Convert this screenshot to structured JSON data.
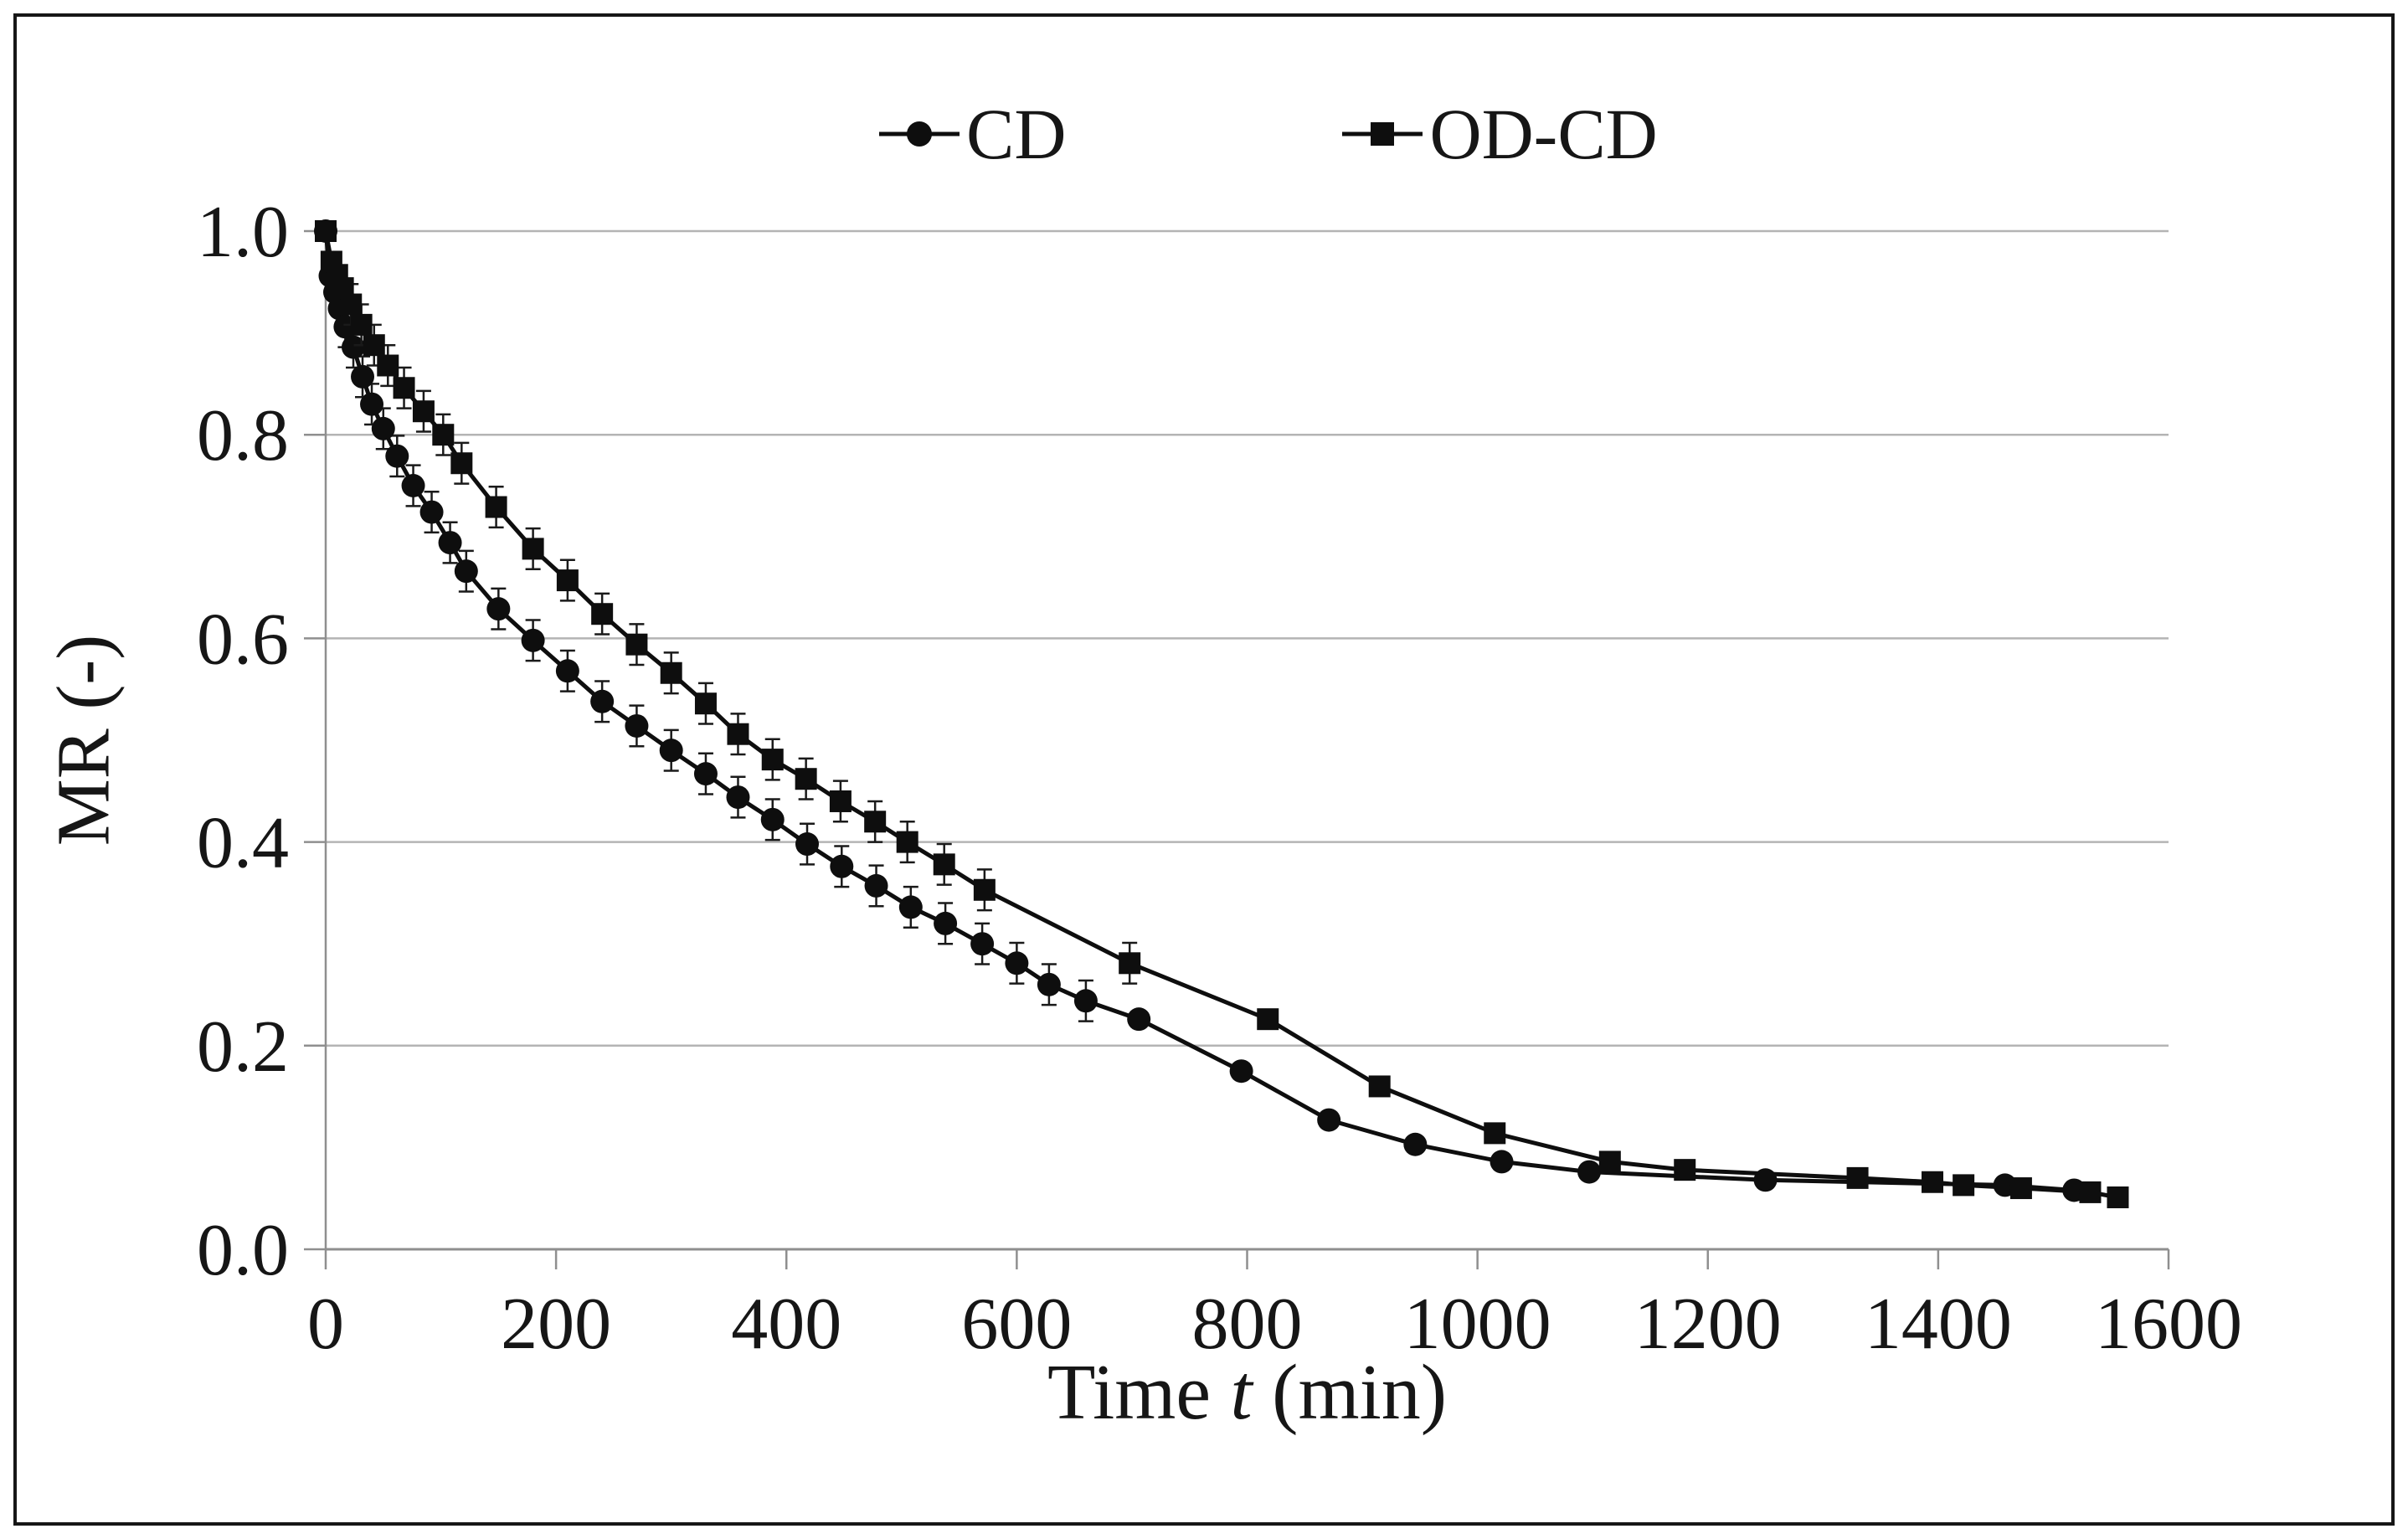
{
  "page": {
    "background": "#ffffff",
    "border_color": "#161616"
  },
  "legend": {
    "position": "top-center",
    "items": [
      {
        "label": "CD",
        "marker": "circle"
      },
      {
        "label": "OD-CD",
        "marker": "square"
      }
    ]
  },
  "chart_data": {
    "type": "line",
    "title": "",
    "xlabel": "Time t (min)",
    "xlabel_parts": {
      "prefix": "Time ",
      "variable": "t",
      "suffix": " (min)"
    },
    "ylabel": "MR (-)",
    "xlim": [
      0,
      1600
    ],
    "ylim": [
      0.0,
      1.0
    ],
    "xticks": [
      {
        "v": 0,
        "label": "0"
      },
      {
        "v": 200,
        "label": "200"
      },
      {
        "v": 400,
        "label": "400"
      },
      {
        "v": 600,
        "label": "600"
      },
      {
        "v": 800,
        "label": "800"
      },
      {
        "v": 1000,
        "label": "1000"
      },
      {
        "v": 1200,
        "label": "1200"
      },
      {
        "v": 1400,
        "label": "1400"
      },
      {
        "v": 1600,
        "label": "1600"
      }
    ],
    "yticks": [
      {
        "v": 0.0,
        "label": "0.0"
      },
      {
        "v": 0.2,
        "label": "0.2"
      },
      {
        "v": 0.4,
        "label": "0.4"
      },
      {
        "v": 0.6,
        "label": "0.6"
      },
      {
        "v": 0.8,
        "label": "0.8"
      },
      {
        "v": 1.0,
        "label": "1.0"
      }
    ],
    "grid": "horizontal-only",
    "legend_position": "top-center",
    "colors": {
      "series": "#0e0e0e",
      "gridline": "#b4b4b4",
      "axis": "#8f8f8f",
      "text": "#161616",
      "error_bar": "#1a1a1a"
    },
    "error_bar_halfwidth_mr": 0.02,
    "series": [
      {
        "name": "CD",
        "marker": "circle",
        "error_bar_t_range": [
          15,
          660
        ],
        "points": [
          [
            0,
            1.0
          ],
          [
            4,
            0.956
          ],
          [
            8,
            0.94
          ],
          [
            12,
            0.924
          ],
          [
            17,
            0.906
          ],
          [
            24,
            0.886
          ],
          [
            32,
            0.857
          ],
          [
            40,
            0.83
          ],
          [
            50,
            0.806
          ],
          [
            62,
            0.779
          ],
          [
            76,
            0.75
          ],
          [
            92,
            0.724
          ],
          [
            108,
            0.694
          ],
          [
            122,
            0.666
          ],
          [
            150,
            0.629
          ],
          [
            180,
            0.598
          ],
          [
            210,
            0.568
          ],
          [
            240,
            0.538
          ],
          [
            270,
            0.514
          ],
          [
            300,
            0.49
          ],
          [
            330,
            0.467
          ],
          [
            358,
            0.444
          ],
          [
            388,
            0.422
          ],
          [
            418,
            0.398
          ],
          [
            448,
            0.376
          ],
          [
            478,
            0.357
          ],
          [
            508,
            0.336
          ],
          [
            538,
            0.32
          ],
          [
            570,
            0.3
          ],
          [
            600,
            0.281
          ],
          [
            628,
            0.26
          ],
          [
            660,
            0.244
          ],
          [
            706,
            0.226
          ],
          [
            795,
            0.175
          ],
          [
            871,
            0.127
          ],
          [
            946,
            0.103
          ],
          [
            1021,
            0.086
          ],
          [
            1097,
            0.076
          ],
          [
            1250,
            0.068
          ],
          [
            1458,
            0.063
          ],
          [
            1518,
            0.058
          ]
        ]
      },
      {
        "name": "OD-CD",
        "marker": "square",
        "error_bar_t_range": [
          20,
          700
        ],
        "points": [
          [
            0,
            1.0
          ],
          [
            5,
            0.97
          ],
          [
            10,
            0.957
          ],
          [
            15,
            0.944
          ],
          [
            22,
            0.928
          ],
          [
            31,
            0.908
          ],
          [
            42,
            0.888
          ],
          [
            54,
            0.868
          ],
          [
            68,
            0.846
          ],
          [
            85,
            0.823
          ],
          [
            102,
            0.8
          ],
          [
            118,
            0.772
          ],
          [
            148,
            0.729
          ],
          [
            180,
            0.688
          ],
          [
            210,
            0.657
          ],
          [
            240,
            0.624
          ],
          [
            270,
            0.594
          ],
          [
            300,
            0.566
          ],
          [
            330,
            0.536
          ],
          [
            358,
            0.506
          ],
          [
            388,
            0.481
          ],
          [
            417,
            0.462
          ],
          [
            447,
            0.44
          ],
          [
            477,
            0.42
          ],
          [
            505,
            0.4
          ],
          [
            537,
            0.378
          ],
          [
            572,
            0.353
          ],
          [
            698,
            0.281
          ],
          [
            818,
            0.226
          ],
          [
            915,
            0.16
          ],
          [
            1015,
            0.114
          ],
          [
            1115,
            0.086
          ],
          [
            1180,
            0.078
          ],
          [
            1330,
            0.07
          ],
          [
            1395,
            0.066
          ],
          [
            1422,
            0.063
          ],
          [
            1472,
            0.06
          ],
          [
            1532,
            0.056
          ],
          [
            1556,
            0.051
          ]
        ]
      }
    ]
  }
}
